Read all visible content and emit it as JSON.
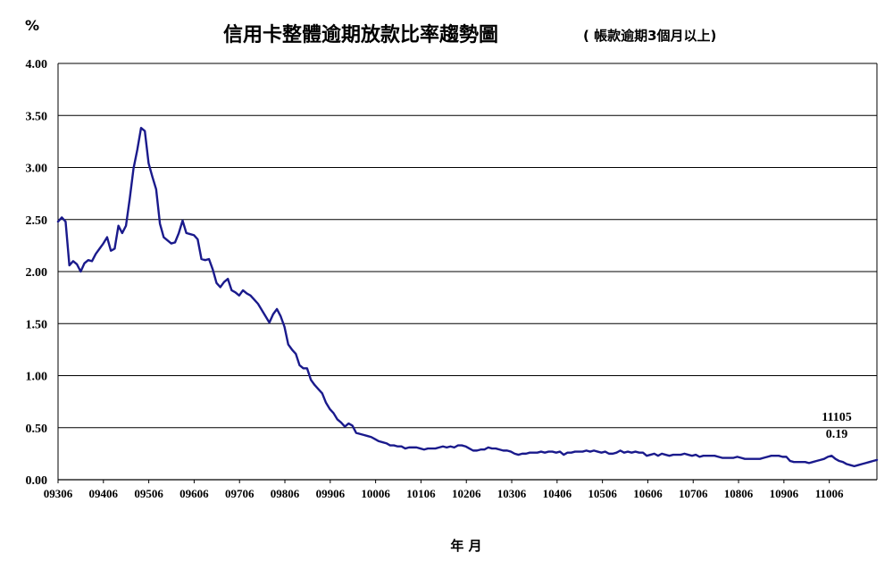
{
  "chart_data": {
    "type": "line",
    "title": "信用卡整體逾期放款比率趨勢圖",
    "subtitle": "( 帳款逾期3個月以上)",
    "unit_label": "%",
    "xlabel": "年 月",
    "ylabel": "",
    "ylim": [
      0,
      4
    ],
    "yticks": [
      "0.00",
      "0.50",
      "1.00",
      "1.50",
      "2.00",
      "2.50",
      "3.00",
      "3.50",
      "4.00"
    ],
    "xticks": [
      "09306",
      "09406",
      "09506",
      "09606",
      "09706",
      "09806",
      "09906",
      "10006",
      "10106",
      "10206",
      "10306",
      "10406",
      "10506",
      "10606",
      "10706",
      "10806",
      "10906",
      "11006"
    ],
    "grid": "horizontal",
    "line_color": "#1a1a8c",
    "series": [
      {
        "name": "",
        "values": [
          2.48,
          2.52,
          2.48,
          2.06,
          2.1,
          2.07,
          2.0,
          2.08,
          2.11,
          2.1,
          2.17,
          2.22,
          2.27,
          2.33,
          2.2,
          2.22,
          2.44,
          2.37,
          2.44,
          2.7,
          2.99,
          3.17,
          3.38,
          3.35,
          3.04,
          2.91,
          2.79,
          2.46,
          2.33,
          2.3,
          2.27,
          2.28,
          2.37,
          2.49,
          2.37,
          2.36,
          2.35,
          2.31,
          2.12,
          2.11,
          2.12,
          2.02,
          1.89,
          1.85,
          1.9,
          1.93,
          1.82,
          1.8,
          1.77,
          1.82,
          1.79,
          1.77,
          1.73,
          1.69,
          1.63,
          1.57,
          1.51,
          1.59,
          1.64,
          1.57,
          1.47,
          1.3,
          1.25,
          1.21,
          1.1,
          1.07,
          1.07,
          0.96,
          0.91,
          0.87,
          0.83,
          0.74,
          0.68,
          0.64,
          0.58,
          0.55,
          0.51,
          0.54,
          0.52,
          0.45,
          0.44,
          0.43,
          0.42,
          0.41,
          0.39,
          0.37,
          0.36,
          0.35,
          0.33,
          0.33,
          0.32,
          0.32,
          0.3,
          0.31,
          0.31,
          0.31,
          0.3,
          0.29,
          0.3,
          0.3,
          0.3,
          0.31,
          0.32,
          0.31,
          0.32,
          0.31,
          0.33,
          0.33,
          0.32,
          0.3,
          0.28,
          0.28,
          0.29,
          0.29,
          0.31,
          0.3,
          0.3,
          0.29,
          0.28,
          0.28,
          0.27,
          0.25,
          0.24,
          0.25,
          0.25,
          0.26,
          0.26,
          0.26,
          0.27,
          0.26,
          0.27,
          0.27,
          0.26,
          0.27,
          0.24,
          0.26,
          0.26,
          0.27,
          0.27,
          0.27,
          0.28,
          0.27,
          0.28,
          0.27,
          0.26,
          0.27,
          0.25,
          0.25,
          0.26,
          0.28,
          0.26,
          0.27,
          0.26,
          0.27,
          0.26,
          0.26,
          0.23,
          0.24,
          0.25,
          0.23,
          0.25,
          0.24,
          0.23,
          0.24,
          0.24,
          0.24,
          0.25,
          0.24,
          0.23,
          0.24,
          0.22,
          0.23,
          0.23,
          0.23,
          0.23,
          0.22,
          0.21,
          0.21,
          0.21,
          0.21,
          0.22,
          0.21,
          0.2,
          0.2,
          0.2,
          0.2,
          0.2,
          0.21,
          0.22,
          0.23,
          0.23,
          0.23,
          0.22,
          0.22,
          0.18,
          0.17,
          0.17,
          0.17,
          0.17,
          0.16,
          0.17,
          0.18,
          0.19,
          0.2,
          0.22,
          0.23,
          0.2,
          0.18,
          0.17,
          0.15,
          0.14,
          0.13,
          0.14,
          0.15,
          0.16,
          0.17,
          0.18,
          0.19
        ]
      }
    ],
    "annotation": {
      "period": "11105",
      "value": "0.19"
    }
  }
}
